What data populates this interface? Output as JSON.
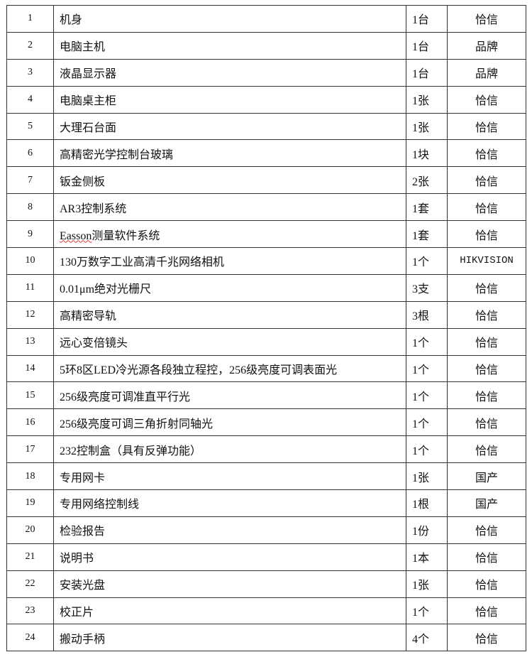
{
  "rows": [
    {
      "no": "1",
      "name": "机身",
      "qty": "1台",
      "brand": "恰信"
    },
    {
      "no": "2",
      "name": "电脑主机",
      "qty": "1台",
      "brand": "品牌"
    },
    {
      "no": "3",
      "name": "液晶显示器",
      "qty": "1台",
      "brand": "品牌"
    },
    {
      "no": "4",
      "name": "电脑桌主柜",
      "qty": "1张",
      "brand": "恰信"
    },
    {
      "no": "5",
      "name": "大理石台面",
      "qty": "1张",
      "brand": "恰信"
    },
    {
      "no": "6",
      "name": "高精密光学控制台玻璃",
      "qty": "1块",
      "brand": "恰信"
    },
    {
      "no": "7",
      "name": "钣金侧板",
      "qty": "2张",
      "brand": "恰信"
    },
    {
      "no": "8",
      "name": "AR3控制系统",
      "qty": "1套",
      "brand": "恰信"
    },
    {
      "no": "9",
      "name": "Easson测量软件系统",
      "qty": "1套",
      "brand": "恰信"
    },
    {
      "no": "10",
      "name": "130万数字工业高清千兆网络相机",
      "qty": "1个",
      "brand": "HIKVISION"
    },
    {
      "no": "11",
      "name": "0.01μm绝对光栅尺",
      "qty": "3支",
      "brand": "恰信"
    },
    {
      "no": "12",
      "name": "高精密导轨",
      "qty": "3根",
      "brand": "恰信"
    },
    {
      "no": "13",
      "name": "远心变倍镜头",
      "qty": "1个",
      "brand": "恰信"
    },
    {
      "no": "14",
      "name": "5环8区LED冷光源各段独立程控，256级亮度可调表面光",
      "qty": "1个",
      "brand": "恰信"
    },
    {
      "no": "15",
      "name": "256级亮度可调准直平行光",
      "qty": "1个",
      "brand": "恰信"
    },
    {
      "no": "16",
      "name": "256级亮度可调三角折射同轴光",
      "qty": "1个",
      "brand": "恰信"
    },
    {
      "no": "17",
      "name": "232控制盒（具有反弹功能）",
      "qty": "1个",
      "brand": "恰信"
    },
    {
      "no": "18",
      "name": "专用网卡",
      "qty": "1张",
      "brand": "国产"
    },
    {
      "no": "19",
      "name": "专用网络控制线",
      "qty": "1根",
      "brand": "国产"
    },
    {
      "no": "20",
      "name": "检验报告",
      "qty": "1份",
      "brand": "恰信"
    },
    {
      "no": "21",
      "name": "说明书",
      "qty": "1本",
      "brand": "恰信"
    },
    {
      "no": "22",
      "name": "安装光盘",
      "qty": "1张",
      "brand": "恰信"
    },
    {
      "no": "23",
      "name": "校正片",
      "qty": "1个",
      "brand": "恰信"
    },
    {
      "no": "24",
      "name": "搬动手柄",
      "qty": "4个",
      "brand": "恰信"
    }
  ]
}
